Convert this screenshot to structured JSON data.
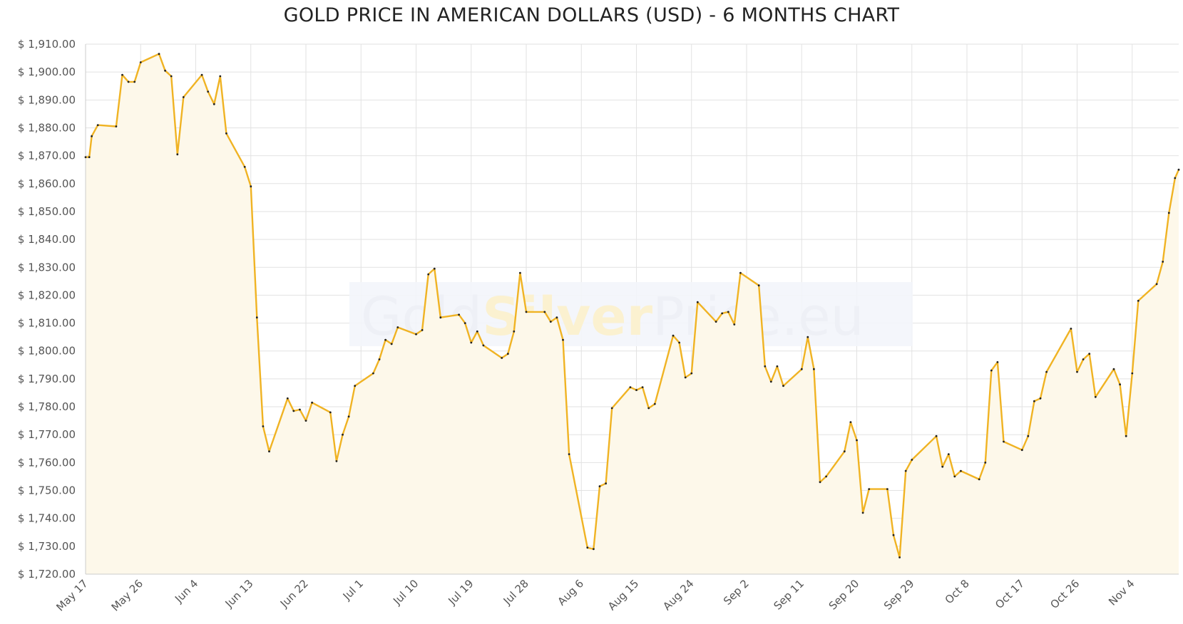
{
  "chart_data": {
    "type": "area",
    "title": "GOLD PRICE IN AMERICAN DOLLARS (USD) - 6 MONTHS CHART",
    "xlabel": "",
    "ylabel": "",
    "watermark": [
      "Gold",
      "Silver",
      "Price.eu"
    ],
    "colors": {
      "line": "#f0b323",
      "fill": "#fdf8ea",
      "grid": "#e2e2e2",
      "marker": "#222222"
    },
    "grid": true,
    "ylim": [
      1720,
      1910
    ],
    "y_ticks": [
      1720,
      1730,
      1740,
      1750,
      1760,
      1770,
      1780,
      1790,
      1800,
      1810,
      1820,
      1830,
      1840,
      1850,
      1860,
      1870,
      1880,
      1890,
      1900,
      1910
    ],
    "y_tick_labels": [
      "$ 1,720.00",
      "$ 1,730.00",
      "$ 1,740.00",
      "$ 1,750.00",
      "$ 1,760.00",
      "$ 1,770.00",
      "$ 1,780.00",
      "$ 1,790.00",
      "$ 1,800.00",
      "$ 1,810.00",
      "$ 1,820.00",
      "$ 1,830.00",
      "$ 1,840.00",
      "$ 1,850.00",
      "$ 1,860.00",
      "$ 1,870.00",
      "$ 1,880.00",
      "$ 1,890.00",
      "$ 1,900.00",
      "$ 1,910.00"
    ],
    "x_ticks": [
      {
        "label": "May 17",
        "date": "2023-05-17"
      },
      {
        "label": "May 26",
        "date": "2023-05-26"
      },
      {
        "label": "Jun 4",
        "date": "2023-06-04"
      },
      {
        "label": "Jun 13",
        "date": "2023-06-13"
      },
      {
        "label": "Jun 22",
        "date": "2023-06-22"
      },
      {
        "label": "Jul 1",
        "date": "2023-07-01"
      },
      {
        "label": "Jul 10",
        "date": "2023-07-10"
      },
      {
        "label": "Jul 19",
        "date": "2023-07-19"
      },
      {
        "label": "Jul 28",
        "date": "2023-07-28"
      },
      {
        "label": "Aug 6",
        "date": "2023-08-06"
      },
      {
        "label": "Aug 15",
        "date": "2023-08-15"
      },
      {
        "label": "Aug 24",
        "date": "2023-08-24"
      },
      {
        "label": "Sep 2",
        "date": "2023-09-02"
      },
      {
        "label": "Sep 11",
        "date": "2023-09-11"
      },
      {
        "label": "Sep 20",
        "date": "2023-09-20"
      },
      {
        "label": "Sep 29",
        "date": "2023-09-29"
      },
      {
        "label": "Oct 8",
        "date": "2023-10-08"
      },
      {
        "label": "Oct 17",
        "date": "2023-10-17"
      },
      {
        "label": "Oct 26",
        "date": "2023-10-26"
      },
      {
        "label": "Nov 4",
        "date": "2023-11-04"
      }
    ],
    "xlim": [
      "2023-05-17",
      "2023-11-11"
    ],
    "series": [
      {
        "points": [
          {
            "x": "2023-05-17",
            "y": 1869.5
          },
          {
            "x": "2023-05-17",
            "y": 1869.5
          },
          {
            "x": "2023-05-18",
            "y": 1877
          },
          {
            "x": "2023-05-19",
            "y": 1881
          },
          {
            "x": "2023-05-22",
            "y": 1880.5
          },
          {
            "x": "2023-05-23",
            "y": 1899
          },
          {
            "x": "2023-05-24",
            "y": 1896.5
          },
          {
            "x": "2023-05-25",
            "y": 1896.5
          },
          {
            "x": "2023-05-26",
            "y": 1903.5
          },
          {
            "x": "2023-05-29",
            "y": 1906.5
          },
          {
            "x": "2023-05-30",
            "y": 1900.5
          },
          {
            "x": "2023-05-31",
            "y": 1898.5
          },
          {
            "x": "2023-06-01",
            "y": 1870.5
          },
          {
            "x": "2023-06-02",
            "y": 1891
          },
          {
            "x": "2023-06-05",
            "y": 1899
          },
          {
            "x": "2023-06-06",
            "y": 1893
          },
          {
            "x": "2023-06-07",
            "y": 1888.5
          },
          {
            "x": "2023-06-08",
            "y": 1898.5
          },
          {
            "x": "2023-06-09",
            "y": 1878
          },
          {
            "x": "2023-06-12",
            "y": 1866
          },
          {
            "x": "2023-06-13",
            "y": 1859
          },
          {
            "x": "2023-06-14",
            "y": 1812
          },
          {
            "x": "2023-06-15",
            "y": 1773
          },
          {
            "x": "2023-06-16",
            "y": 1764
          },
          {
            "x": "2023-06-19",
            "y": 1783
          },
          {
            "x": "2023-06-20",
            "y": 1778.5
          },
          {
            "x": "2023-06-21",
            "y": 1779
          },
          {
            "x": "2023-06-22",
            "y": 1775
          },
          {
            "x": "2023-06-23",
            "y": 1781.5
          },
          {
            "x": "2023-06-26",
            "y": 1778
          },
          {
            "x": "2023-06-27",
            "y": 1760.5
          },
          {
            "x": "2023-06-28",
            "y": 1770
          },
          {
            "x": "2023-06-29",
            "y": 1776.5
          },
          {
            "x": "2023-06-30",
            "y": 1787.5
          },
          {
            "x": "2023-07-03",
            "y": 1792
          },
          {
            "x": "2023-07-04",
            "y": 1797
          },
          {
            "x": "2023-07-05",
            "y": 1804
          },
          {
            "x": "2023-07-06",
            "y": 1802.5
          },
          {
            "x": "2023-07-07",
            "y": 1808.5
          },
          {
            "x": "2023-07-10",
            "y": 1806
          },
          {
            "x": "2023-07-11",
            "y": 1807.5
          },
          {
            "x": "2023-07-12",
            "y": 1827.5
          },
          {
            "x": "2023-07-13",
            "y": 1829.5
          },
          {
            "x": "2023-07-14",
            "y": 1812
          },
          {
            "x": "2023-07-17",
            "y": 1813
          },
          {
            "x": "2023-07-18",
            "y": 1810
          },
          {
            "x": "2023-07-19",
            "y": 1803
          },
          {
            "x": "2023-07-20",
            "y": 1807
          },
          {
            "x": "2023-07-21",
            "y": 1802
          },
          {
            "x": "2023-07-24",
            "y": 1797.5
          },
          {
            "x": "2023-07-25",
            "y": 1799
          },
          {
            "x": "2023-07-26",
            "y": 1807
          },
          {
            "x": "2023-07-27",
            "y": 1828
          },
          {
            "x": "2023-07-28",
            "y": 1814
          },
          {
            "x": "2023-07-31",
            "y": 1814
          },
          {
            "x": "2023-08-01",
            "y": 1810.5
          },
          {
            "x": "2023-08-02",
            "y": 1812
          },
          {
            "x": "2023-08-03",
            "y": 1804
          },
          {
            "x": "2023-08-04",
            "y": 1763
          },
          {
            "x": "2023-08-07",
            "y": 1729.5
          },
          {
            "x": "2023-08-08",
            "y": 1729
          },
          {
            "x": "2023-08-09",
            "y": 1751.5
          },
          {
            "x": "2023-08-10",
            "y": 1752.5
          },
          {
            "x": "2023-08-11",
            "y": 1779.5
          },
          {
            "x": "2023-08-14",
            "y": 1787
          },
          {
            "x": "2023-08-15",
            "y": 1786
          },
          {
            "x": "2023-08-16",
            "y": 1787
          },
          {
            "x": "2023-08-17",
            "y": 1779.5
          },
          {
            "x": "2023-08-18",
            "y": 1781
          },
          {
            "x": "2023-08-21",
            "y": 1805.5
          },
          {
            "x": "2023-08-22",
            "y": 1803
          },
          {
            "x": "2023-08-23",
            "y": 1790.5
          },
          {
            "x": "2023-08-24",
            "y": 1792
          },
          {
            "x": "2023-08-25",
            "y": 1817.5
          },
          {
            "x": "2023-08-28",
            "y": 1810.5
          },
          {
            "x": "2023-08-29",
            "y": 1813.5
          },
          {
            "x": "2023-08-30",
            "y": 1814
          },
          {
            "x": "2023-08-31",
            "y": 1809.5
          },
          {
            "x": "2023-09-01",
            "y": 1828
          },
          {
            "x": "2023-09-04",
            "y": 1823.5
          },
          {
            "x": "2023-09-05",
            "y": 1794.5
          },
          {
            "x": "2023-09-06",
            "y": 1789
          },
          {
            "x": "2023-09-07",
            "y": 1794.5
          },
          {
            "x": "2023-09-08",
            "y": 1787.5
          },
          {
            "x": "2023-09-11",
            "y": 1793.5
          },
          {
            "x": "2023-09-12",
            "y": 1805
          },
          {
            "x": "2023-09-13",
            "y": 1793.5
          },
          {
            "x": "2023-09-14",
            "y": 1753
          },
          {
            "x": "2023-09-15",
            "y": 1755
          },
          {
            "x": "2023-09-18",
            "y": 1764
          },
          {
            "x": "2023-09-19",
            "y": 1774.5
          },
          {
            "x": "2023-09-20",
            "y": 1768
          },
          {
            "x": "2023-09-21",
            "y": 1742
          },
          {
            "x": "2023-09-22",
            "y": 1750.5
          },
          {
            "x": "2023-09-25",
            "y": 1750.5
          },
          {
            "x": "2023-09-26",
            "y": 1734
          },
          {
            "x": "2023-09-27",
            "y": 1726
          },
          {
            "x": "2023-09-28",
            "y": 1757
          },
          {
            "x": "2023-09-29",
            "y": 1761
          },
          {
            "x": "2023-10-03",
            "y": 1769.5
          },
          {
            "x": "2023-10-04",
            "y": 1758.5
          },
          {
            "x": "2023-10-05",
            "y": 1763
          },
          {
            "x": "2023-10-06",
            "y": 1755
          },
          {
            "x": "2023-10-07",
            "y": 1757
          },
          {
            "x": "2023-10-10",
            "y": 1754
          },
          {
            "x": "2023-10-11",
            "y": 1760
          },
          {
            "x": "2023-10-12",
            "y": 1793
          },
          {
            "x": "2023-10-13",
            "y": 1796
          },
          {
            "x": "2023-10-14",
            "y": 1767.5
          },
          {
            "x": "2023-10-17",
            "y": 1764.5
          },
          {
            "x": "2023-10-18",
            "y": 1769.5
          },
          {
            "x": "2023-10-19",
            "y": 1782
          },
          {
            "x": "2023-10-20",
            "y": 1783
          },
          {
            "x": "2023-10-21",
            "y": 1792.5
          },
          {
            "x": "2023-10-25",
            "y": 1808
          },
          {
            "x": "2023-10-26",
            "y": 1792.5
          },
          {
            "x": "2023-10-27",
            "y": 1797
          },
          {
            "x": "2023-10-28",
            "y": 1799
          },
          {
            "x": "2023-10-29",
            "y": 1783.5
          },
          {
            "x": "2023-11-01",
            "y": 1793.5
          },
          {
            "x": "2023-11-02",
            "y": 1788
          },
          {
            "x": "2023-11-03",
            "y": 1769.5
          },
          {
            "x": "2023-11-04",
            "y": 1792
          },
          {
            "x": "2023-11-05",
            "y": 1818
          },
          {
            "x": "2023-11-08",
            "y": 1824
          },
          {
            "x": "2023-11-09",
            "y": 1832
          },
          {
            "x": "2023-11-10",
            "y": 1849.5
          },
          {
            "x": "2023-11-11",
            "y": 1862
          },
          {
            "x": "2023-11-11",
            "y": 1865
          }
        ]
      }
    ]
  }
}
